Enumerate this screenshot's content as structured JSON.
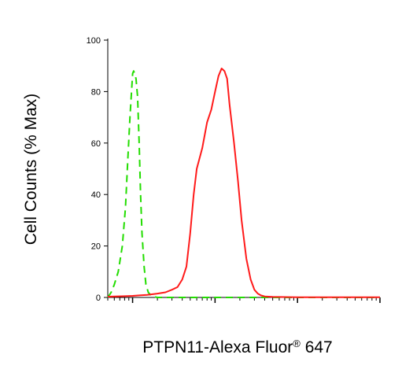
{
  "chart_data": {
    "type": "line",
    "title": "",
    "xlabel": {
      "main": "PTPN11-Alexa Fluor",
      "sup": "®",
      "tail": " 647"
    },
    "ylabel": "Cell Counts (% Max)",
    "ylim": [
      0,
      100
    ],
    "y_ticks": [
      "0",
      "20",
      "40",
      "60",
      "80",
      "100"
    ],
    "x_scale": "log",
    "xlim": [
      0.5,
      1000
    ],
    "x_major_ticks": [
      1,
      10,
      100
    ],
    "legend": "none",
    "grid": false,
    "series": [
      {
        "style": "dashed",
        "color": "#22dd00",
        "x": [
          0.5,
          0.55,
          0.6,
          0.67,
          0.75,
          0.82,
          0.88,
          0.93,
          0.98,
          1.0,
          1.03,
          1.06,
          1.1,
          1.15,
          1.2,
          1.25,
          1.3,
          1.38,
          1.45,
          1.55,
          1.65,
          1.8,
          2.0,
          2.5,
          4,
          10,
          50,
          200,
          1000
        ],
        "y": [
          0,
          2,
          5,
          10,
          20,
          35,
          55,
          70,
          82,
          87,
          88,
          87,
          85,
          78,
          60,
          40,
          25,
          12,
          5,
          2,
          1,
          0.3,
          0,
          0,
          0,
          0,
          0,
          0,
          0
        ]
      },
      {
        "style": "solid",
        "color": "#ff1a1a",
        "x": [
          0.5,
          0.8,
          1.0,
          1.2,
          1.5,
          2.0,
          2.5,
          3.0,
          3.5,
          4.0,
          4.5,
          5.0,
          5.5,
          6.0,
          7.0,
          8.0,
          9.0,
          10.0,
          11.0,
          12.0,
          13.0,
          14.0,
          15.0,
          17.0,
          19.0,
          21.0,
          24.0,
          27.0,
          30.0,
          33.0,
          36.0,
          40.0,
          50.0,
          100,
          200,
          500,
          1000
        ],
        "y": [
          0.3,
          0.5,
          0.6,
          0.8,
          1,
          1.5,
          2,
          3,
          4,
          7,
          12,
          25,
          40,
          50,
          58,
          68,
          73,
          80,
          86,
          89,
          88,
          85,
          75,
          60,
          45,
          30,
          15,
          7,
          3,
          1.5,
          0.8,
          0.4,
          0.2,
          0.1,
          0.1,
          0.1,
          0.1
        ]
      }
    ]
  },
  "colors": {
    "control_series": "#22dd00",
    "stained_series": "#ff1a1a",
    "axes": "#000000"
  }
}
